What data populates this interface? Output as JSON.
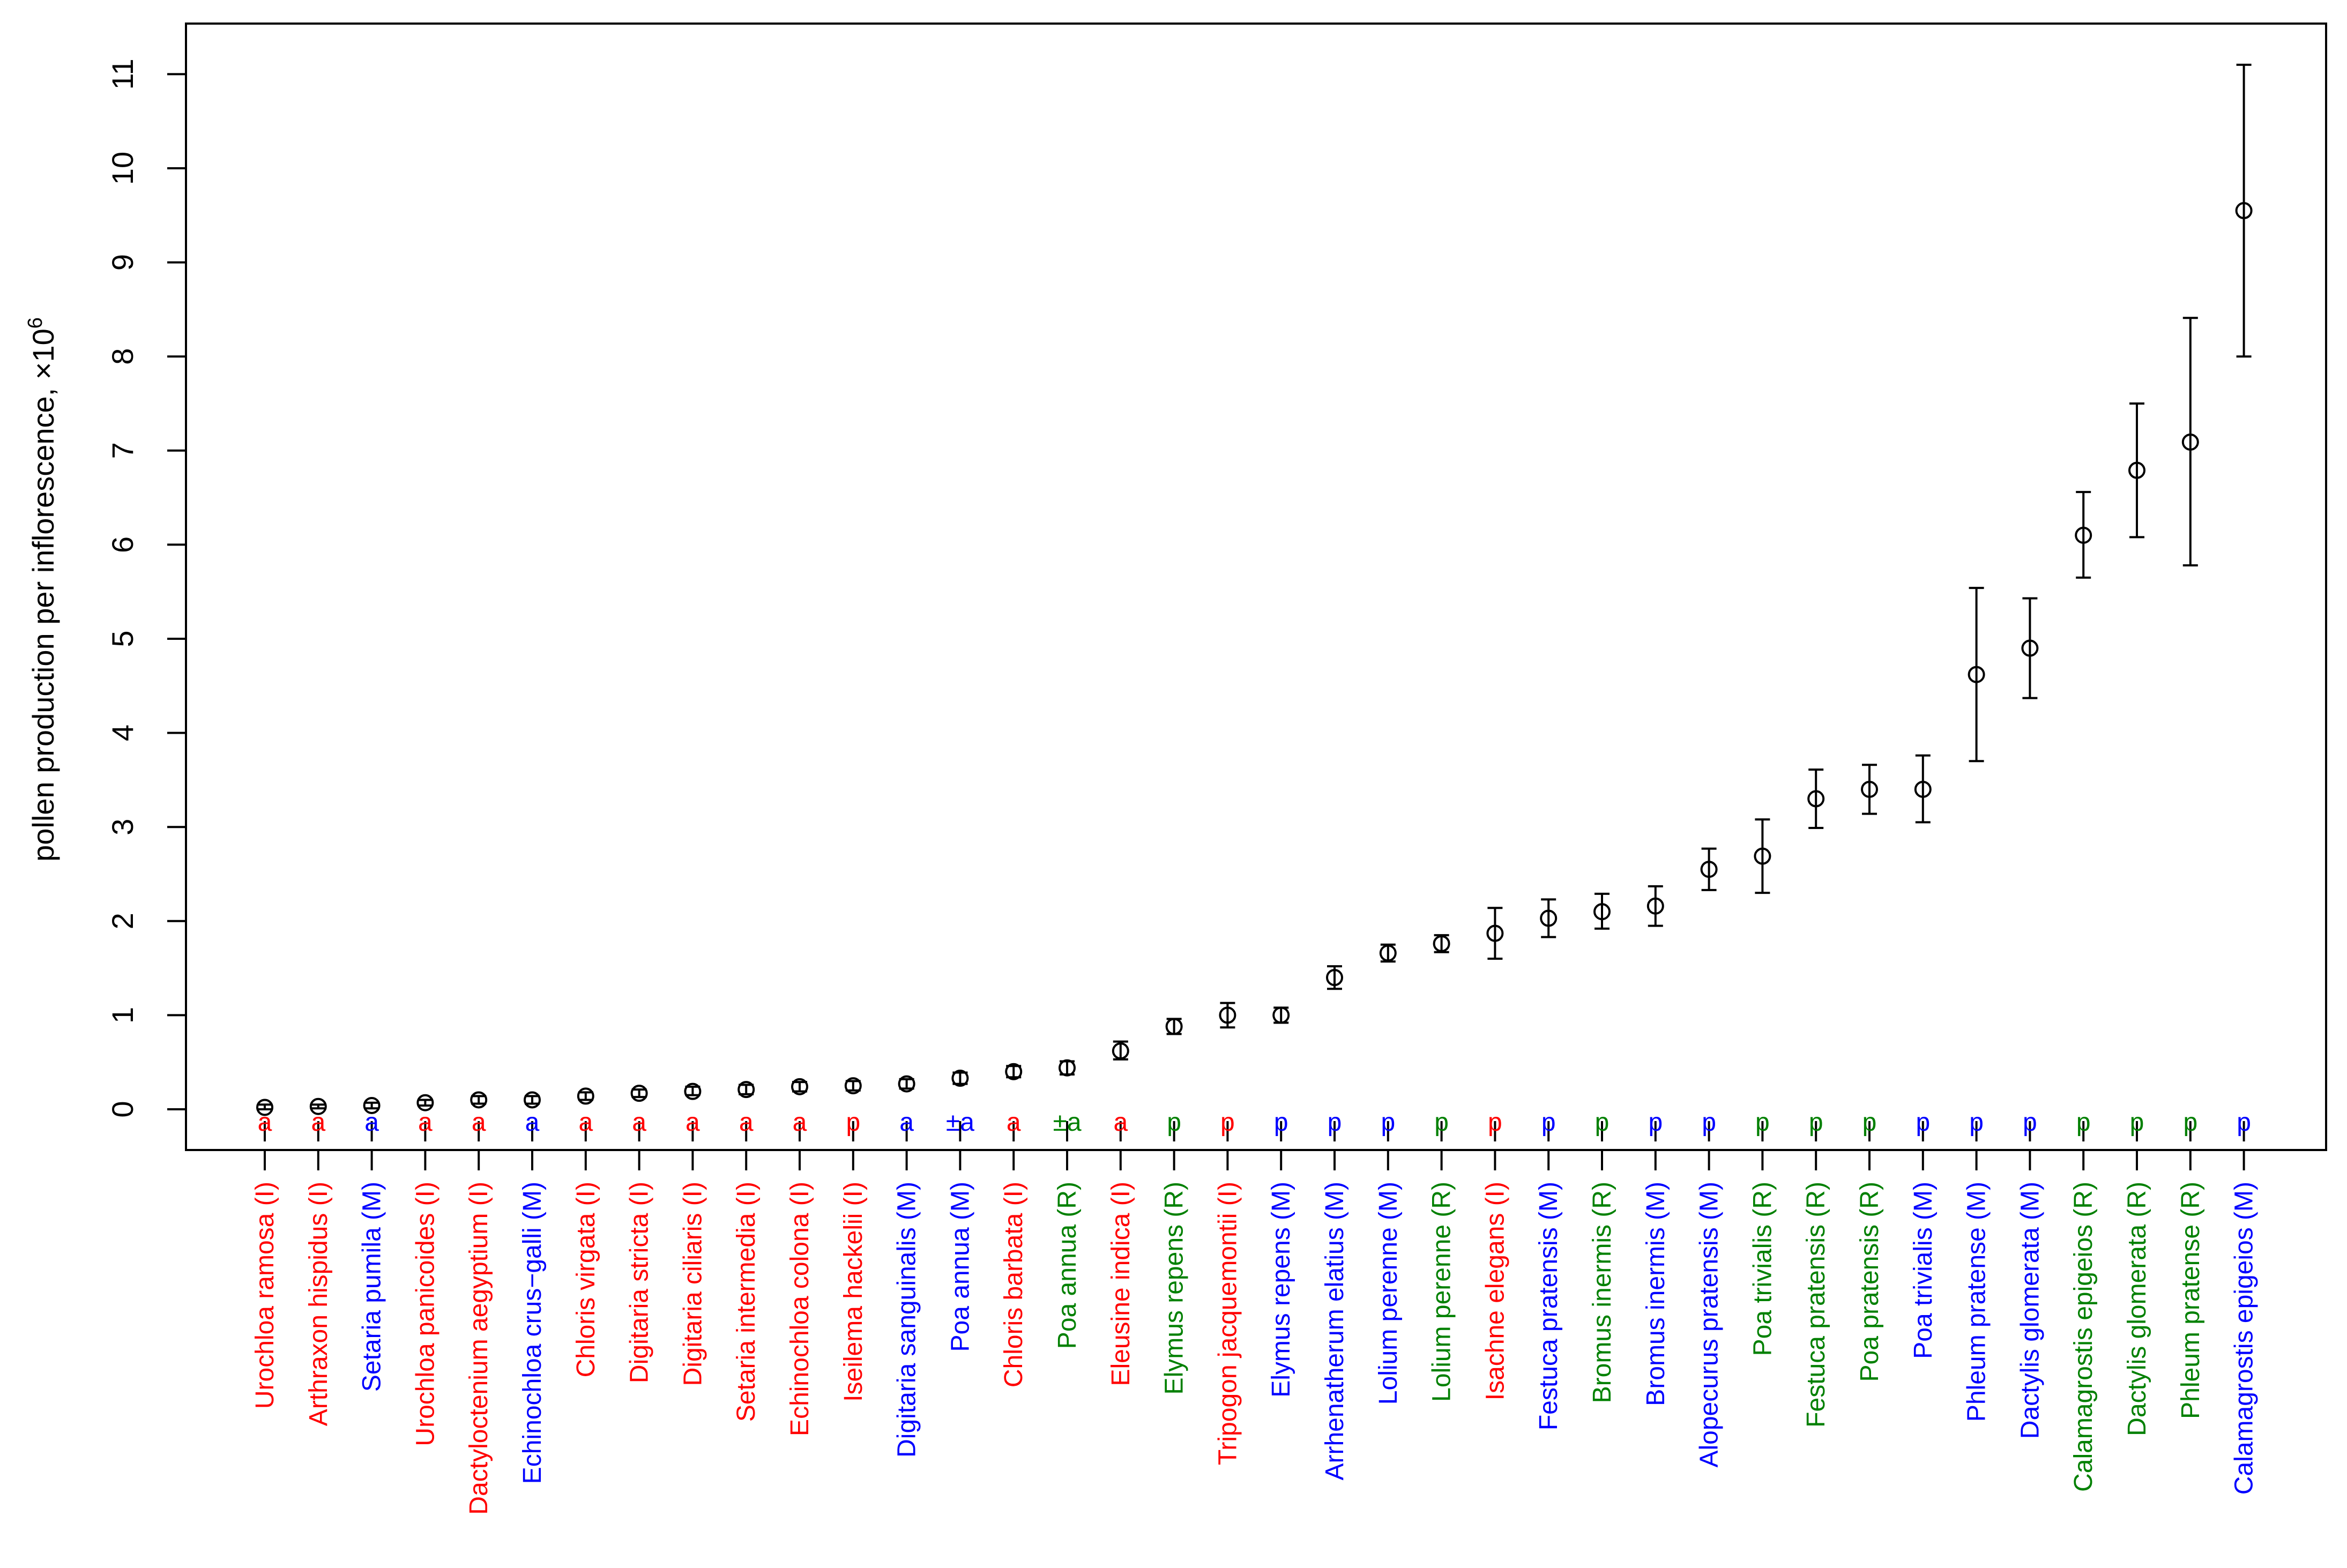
{
  "chart_data": {
    "type": "scatter",
    "title": "",
    "xlabel": "",
    "ylabel": "pollen production per inflorescence, ×10",
    "ylabel_superscript": "6",
    "ylim": [
      0,
      11
    ],
    "yticks": [
      0,
      1,
      2,
      3,
      4,
      5,
      6,
      7,
      8,
      9,
      10,
      11
    ],
    "grid": false,
    "legend": "none",
    "colors": {
      "I": "#ff0000",
      "M": "#0000ff",
      "R": "#008000",
      "marker": "#000000"
    },
    "points": [
      {
        "label": "Urochloa ramosa (I)",
        "group": "I",
        "life": "a",
        "y": 0.02,
        "lo": 0.0,
        "hi": 0.05
      },
      {
        "label": "Arthraxon hispidus (I)",
        "group": "I",
        "life": "a",
        "y": 0.03,
        "lo": 0.01,
        "hi": 0.05
      },
      {
        "label": "Setaria pumila (M)",
        "group": "M",
        "life": "a",
        "y": 0.04,
        "lo": 0.01,
        "hi": 0.07
      },
      {
        "label": "Urochloa panicoides (I)",
        "group": "I",
        "life": "a",
        "y": 0.07,
        "lo": 0.04,
        "hi": 0.1
      },
      {
        "label": "Dactyloctenium aegyptium (I)",
        "group": "I",
        "life": "a",
        "y": 0.1,
        "lo": 0.06,
        "hi": 0.14
      },
      {
        "label": "Echinochloa crus−galli (M)",
        "group": "M",
        "life": "a",
        "y": 0.1,
        "lo": 0.06,
        "hi": 0.14
      },
      {
        "label": "Chloris virgata (I)",
        "group": "I",
        "life": "a",
        "y": 0.14,
        "lo": 0.1,
        "hi": 0.18
      },
      {
        "label": "Digitaria stricta (I)",
        "group": "I",
        "life": "a",
        "y": 0.17,
        "lo": 0.13,
        "hi": 0.21
      },
      {
        "label": "Digitaria ciliaris (I)",
        "group": "I",
        "life": "a",
        "y": 0.19,
        "lo": 0.15,
        "hi": 0.24
      },
      {
        "label": "Setaria intermedia (I)",
        "group": "I",
        "life": "a",
        "y": 0.21,
        "lo": 0.16,
        "hi": 0.26
      },
      {
        "label": "Echinochloa colona (I)",
        "group": "I",
        "life": "a",
        "y": 0.24,
        "lo": 0.19,
        "hi": 0.29
      },
      {
        "label": "Iseilema hackelii (I)",
        "group": "I",
        "life": "p",
        "y": 0.25,
        "lo": 0.2,
        "hi": 0.3
      },
      {
        "label": "Digitaria sanguinalis (M)",
        "group": "M",
        "life": "a",
        "y": 0.27,
        "lo": 0.22,
        "hi": 0.32
      },
      {
        "label": "Poa annua (M)",
        "group": "M",
        "life": "±a",
        "y": 0.33,
        "lo": 0.27,
        "hi": 0.39
      },
      {
        "label": "Chloris barbata (I)",
        "group": "I",
        "life": "a",
        "y": 0.4,
        "lo": 0.34,
        "hi": 0.46
      },
      {
        "label": "Poa annua (R)",
        "group": "R",
        "life": "±a",
        "y": 0.44,
        "lo": 0.37,
        "hi": 0.51
      },
      {
        "label": "Eleusine indica (I)",
        "group": "I",
        "life": "a",
        "y": 0.62,
        "lo": 0.53,
        "hi": 0.72
      },
      {
        "label": "Elymus repens (R)",
        "group": "R",
        "life": "p",
        "y": 0.88,
        "lo": 0.8,
        "hi": 0.96
      },
      {
        "label": "Tripogon jacquemontii (I)",
        "group": "I",
        "life": "p",
        "y": 1.0,
        "lo": 0.87,
        "hi": 1.13
      },
      {
        "label": "Elymus repens (M)",
        "group": "M",
        "life": "p",
        "y": 1.0,
        "lo": 0.92,
        "hi": 1.08
      },
      {
        "label": "Arrhenatherum elatius (M)",
        "group": "M",
        "life": "p",
        "y": 1.4,
        "lo": 1.28,
        "hi": 1.52
      },
      {
        "label": "Lolium perenne (M)",
        "group": "M",
        "life": "p",
        "y": 1.66,
        "lo": 1.57,
        "hi": 1.75
      },
      {
        "label": "Lolium perenne (R)",
        "group": "R",
        "life": "p",
        "y": 1.76,
        "lo": 1.67,
        "hi": 1.85
      },
      {
        "label": "Isachne elegans (I)",
        "group": "I",
        "life": "p",
        "y": 1.87,
        "lo": 1.6,
        "hi": 2.14
      },
      {
        "label": "Festuca pratensis (M)",
        "group": "M",
        "life": "p",
        "y": 2.03,
        "lo": 1.83,
        "hi": 2.23
      },
      {
        "label": "Bromus inermis (R)",
        "group": "R",
        "life": "p",
        "y": 2.1,
        "lo": 1.92,
        "hi": 2.29
      },
      {
        "label": "Bromus inermis (M)",
        "group": "M",
        "life": "p",
        "y": 2.16,
        "lo": 1.95,
        "hi": 2.37
      },
      {
        "label": "Alopecurus pratensis (M)",
        "group": "M",
        "life": "p",
        "y": 2.55,
        "lo": 2.33,
        "hi": 2.77
      },
      {
        "label": "Poa trivialis (R)",
        "group": "R",
        "life": "p",
        "y": 2.69,
        "lo": 2.3,
        "hi": 3.08
      },
      {
        "label": "Festuca pratensis (R)",
        "group": "R",
        "life": "p",
        "y": 3.3,
        "lo": 2.99,
        "hi": 3.61
      },
      {
        "label": "Poa pratensis (R)",
        "group": "R",
        "life": "p",
        "y": 3.4,
        "lo": 3.14,
        "hi": 3.66
      },
      {
        "label": "Poa trivialis (M)",
        "group": "M",
        "life": "p",
        "y": 3.4,
        "lo": 3.05,
        "hi": 3.76
      },
      {
        "label": "Phleum pratense (M)",
        "group": "M",
        "life": "p",
        "y": 4.62,
        "lo": 3.7,
        "hi": 5.54
      },
      {
        "label": "Dactylis glomerata (M)",
        "group": "M",
        "life": "p",
        "y": 4.9,
        "lo": 4.37,
        "hi": 5.43
      },
      {
        "label": "Calamagrostis epigeios (R)",
        "group": "R",
        "life": "p",
        "y": 6.1,
        "lo": 5.65,
        "hi": 6.56
      },
      {
        "label": "Dactylis glomerata (R)",
        "group": "R",
        "life": "p",
        "y": 6.79,
        "lo": 6.08,
        "hi": 7.5
      },
      {
        "label": "Phleum pratense (R)",
        "group": "R",
        "life": "p",
        "y": 7.09,
        "lo": 5.78,
        "hi": 8.41
      },
      {
        "label": "Calamagrostis epigeios (M)",
        "group": "M",
        "life": "p",
        "y": 9.55,
        "lo": 8.0,
        "hi": 11.1
      }
    ]
  }
}
